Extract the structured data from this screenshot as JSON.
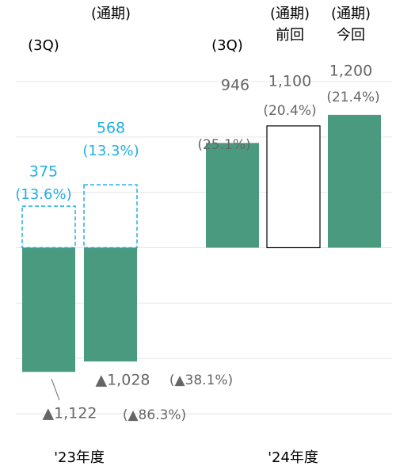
{
  "chart_data": {
    "type": "bar",
    "ylim": [
      -1500,
      1500
    ],
    "yticks": [
      -1500,
      -1000,
      -500,
      0,
      500,
      1000,
      1500
    ],
    "grid": true,
    "headers": [
      "(通期)",
      "(3Q)",
      "(3Q)",
      "(通期)",
      "前回",
      "(通期)",
      "今回"
    ],
    "groups": [
      "'23年度",
      "'24年度"
    ],
    "bars": [
      {
        "value": -1122,
        "value_label": "▲1,122",
        "rate_label": "(▲86.3%)",
        "style": "solid",
        "color": "#4a9a80"
      },
      {
        "value": 375,
        "rate_label": "(13.6%)",
        "style": "dashed",
        "color": "#22aee6"
      },
      {
        "value": -1028,
        "value_label": "▲1,028",
        "rate_label": "(▲38.1%)",
        "style": "solid",
        "color": "#4a9a80"
      },
      {
        "value": 568,
        "rate_label": "(13.3%)",
        "style": "dashed",
        "color": "#22aee6"
      },
      {
        "value": 946,
        "rate_label": "(25.1%)",
        "style": "solid",
        "color": "#4a9a80"
      },
      {
        "value": 1100,
        "value_label": "1,100",
        "rate_label": "(20.4%)",
        "style": "outline",
        "color": "#000000"
      },
      {
        "value": 1200,
        "value_label": "1,200",
        "rate_label": "(21.4%)",
        "style": "solid",
        "color": "#4a9a80"
      }
    ]
  }
}
